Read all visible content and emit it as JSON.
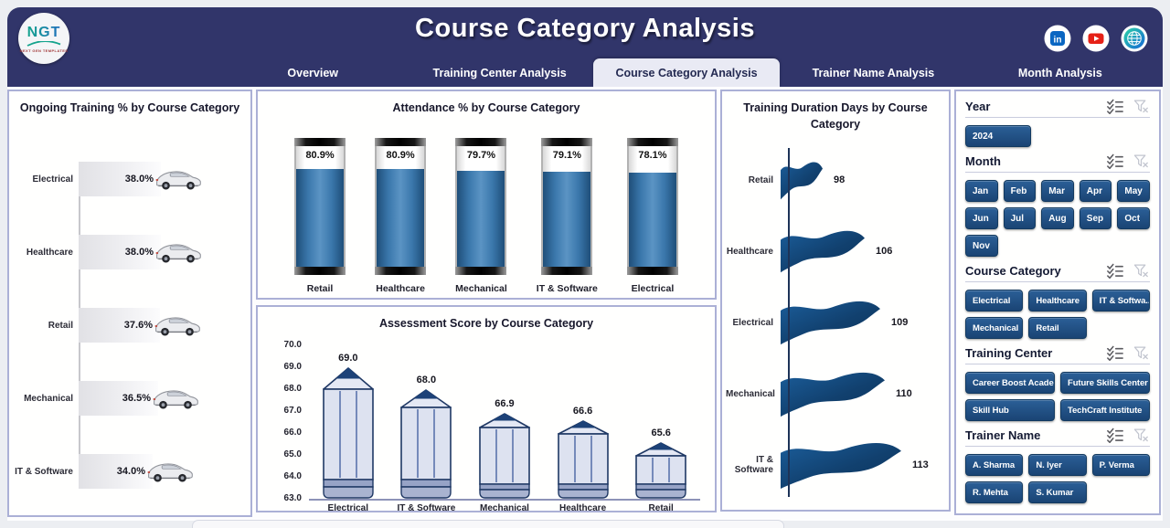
{
  "page": {
    "title": "Course Category Analysis"
  },
  "logo": {
    "text": "NGT",
    "subtext": "NEXT GEN TEMPLATES"
  },
  "social_icons": [
    "linkedin",
    "youtube",
    "website-globe"
  ],
  "tabs": [
    {
      "label": "Overview",
      "active": false
    },
    {
      "label": "Training Center Analysis",
      "active": false
    },
    {
      "label": "Course Category Analysis",
      "active": true
    },
    {
      "label": "Trainer Name Analysis",
      "active": false
    },
    {
      "label": "Month Analysis",
      "active": false
    }
  ],
  "chart_data": [
    {
      "type": "bar",
      "orientation": "horizontal",
      "style": "car-icon-bars",
      "title": "Ongoing Training % by Course Category",
      "categories": [
        "Electrical",
        "Healthcare",
        "Retail",
        "Mechanical",
        "IT & Software"
      ],
      "values": [
        38.0,
        38.0,
        37.6,
        36.5,
        34.0
      ],
      "label_format": "percent1",
      "xlim": [
        0,
        40
      ],
      "grid": false
    },
    {
      "type": "bar",
      "orientation": "vertical",
      "style": "battery",
      "title": "Attendance % by Course Category",
      "categories": [
        "Retail",
        "Healthcare",
        "Mechanical",
        "IT & Software",
        "Electrical"
      ],
      "values": [
        80.9,
        80.9,
        79.7,
        79.1,
        78.1
      ],
      "label_format": "percent1",
      "ylim": [
        0,
        100
      ],
      "grid": false
    },
    {
      "type": "bar",
      "orientation": "vertical",
      "style": "pencil",
      "title": "Assessment Score by Course Category",
      "categories": [
        "Electrical",
        "IT & Software",
        "Mechanical",
        "Healthcare",
        "Retail"
      ],
      "values": [
        69.0,
        68.0,
        66.9,
        66.6,
        65.6
      ],
      "label_format": "fixed1",
      "ylim": [
        63,
        70
      ],
      "yticks": [
        63.0,
        64.0,
        65.0,
        66.0,
        67.0,
        68.0,
        69.0,
        70.0
      ],
      "grid": false
    },
    {
      "type": "bar",
      "orientation": "horizontal",
      "style": "flag",
      "title": "Training Duration Days by Course Category",
      "categories": [
        "Retail",
        "Healthcare",
        "Electrical",
        "Mechanical",
        "IT & Software"
      ],
      "values": [
        98,
        106,
        109,
        110,
        113
      ],
      "label_format": "int",
      "grid": false
    }
  ],
  "filters": [
    {
      "label": "Year",
      "layout": "lay-row",
      "items": [
        "2024"
      ]
    },
    {
      "label": "Month",
      "layout": "lay-grid5",
      "items": [
        "Jan",
        "Feb",
        "Mar",
        "Apr",
        "May",
        "Jun",
        "Jul",
        "Aug",
        "Sep",
        "Oct",
        "Nov"
      ]
    },
    {
      "label": "Course Category",
      "layout": "lay-wrap3",
      "items": [
        "Electrical",
        "Healthcare",
        "IT & Softwa...",
        "Mechanical",
        "Retail"
      ]
    },
    {
      "label": "Training Center",
      "layout": "lay-grid2",
      "items": [
        "Career Boost Acade...",
        "Future Skills Center",
        "Skill Hub",
        "TechCraft Institute"
      ]
    },
    {
      "label": "Trainer Name",
      "layout": "lay-grid3",
      "items": [
        "A. Sharma",
        "N. Iyer",
        "P. Verma",
        "R. Mehta",
        "S. Kumar"
      ]
    }
  ],
  "colors": {
    "header_navy": "#31356a",
    "active_tab_bg": "#e9eaf4",
    "slicer_button_blue": "#1d4f82",
    "battery_bar_blue": "#2e6da4",
    "flag_navy": "#11406e",
    "pencil_body": "#dde2f0",
    "pencil_outline": "#1f3864",
    "panel_border": "#abb0d6"
  }
}
